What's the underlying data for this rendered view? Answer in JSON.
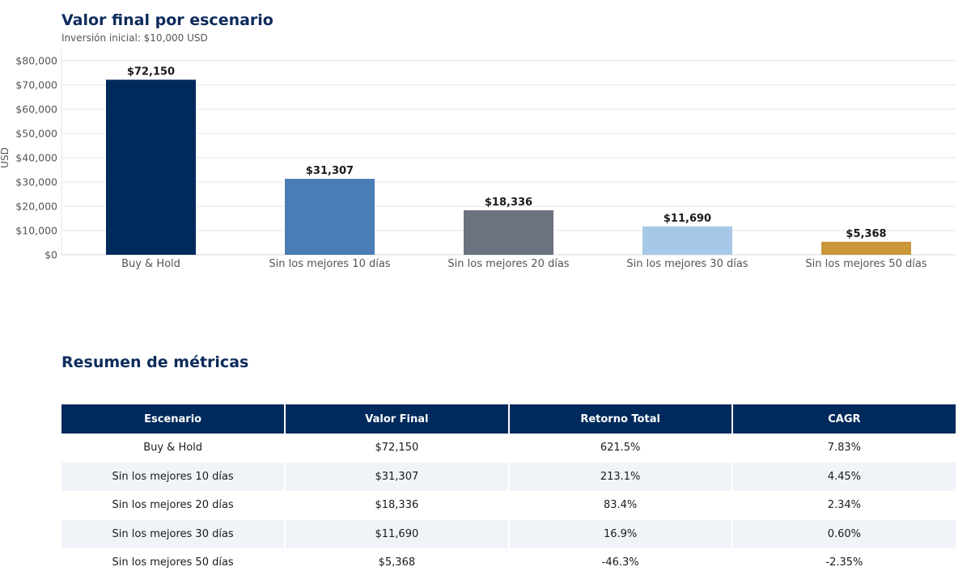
{
  "chart_data": {
    "type": "bar",
    "title": "Valor final por escenario",
    "subtitle": "Inversión inicial: $10,000 USD",
    "xlabel": "",
    "ylabel": "USD",
    "ylim": [
      0,
      80000
    ],
    "yticks": [
      0,
      10000,
      20000,
      30000,
      40000,
      50000,
      60000,
      70000,
      80000
    ],
    "ytick_labels": [
      "$0",
      "$10,000",
      "$20,000",
      "$30,000",
      "$40,000",
      "$50,000",
      "$60,000",
      "$70,000",
      "$80,000"
    ],
    "grid": true,
    "categories": [
      "Buy & Hold",
      "Sin los mejores 10 días",
      "Sin los mejores 20 días",
      "Sin los mejores 30 días",
      "Sin los mejores 50 días"
    ],
    "values": [
      72150,
      31307,
      18336,
      11690,
      5368
    ],
    "data_labels": [
      "$72,150",
      "$31,307",
      "$18,336",
      "$11,690",
      "$5,368"
    ],
    "colors": [
      "#002a5c",
      "#4a7db5",
      "#6b7280",
      "#a8c8e8",
      "#c9973a"
    ]
  },
  "table": {
    "title": "Resumen de métricas",
    "headers": [
      "Escenario",
      "Valor Final",
      "Retorno Total",
      "CAGR"
    ],
    "rows": [
      [
        "Buy & Hold",
        "$72,150",
        "621.5%",
        "7.83%"
      ],
      [
        "Sin los mejores 10 días",
        "$31,307",
        "213.1%",
        "4.45%"
      ],
      [
        "Sin los mejores 20 días",
        "$18,336",
        "83.4%",
        "2.34%"
      ],
      [
        "Sin los mejores 30 días",
        "$11,690",
        "16.9%",
        "0.60%"
      ],
      [
        "Sin los mejores 50 días",
        "$5,368",
        "-46.3%",
        "-2.35%"
      ]
    ]
  }
}
